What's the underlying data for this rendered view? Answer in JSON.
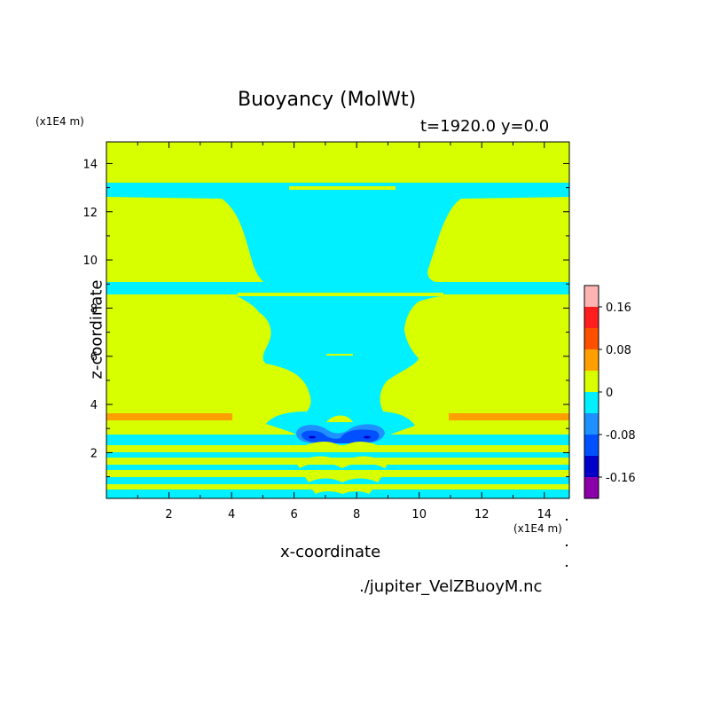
{
  "chart_data": {
    "type": "heatmap",
    "title": "Buoyancy (MolWt)",
    "subtitle": "t=1920.0 y=0.0",
    "xlabel": "x-coordinate",
    "ylabel": "z-coordinate",
    "x_unit": "(x1E4 m)",
    "y_unit": "(x1E4 m)",
    "xlim": [
      0,
      14.8
    ],
    "ylim": [
      0.1,
      14.9
    ],
    "x_ticks": [
      "2",
      "4",
      "6",
      "8",
      "10",
      "12",
      "14"
    ],
    "y_ticks": [
      "2",
      "4",
      "6",
      "8",
      "10",
      "12",
      "14"
    ],
    "colorbar": {
      "levels": [
        -0.2,
        -0.16,
        -0.12,
        -0.08,
        -0.04,
        0,
        0.04,
        0.08,
        0.12,
        0.16,
        0.2
      ],
      "tick_labels": [
        "0.16",
        "0.08",
        "0",
        "-0.08",
        "-0.16"
      ],
      "colors": [
        "#8b00a8",
        "#0000c8",
        "#0050ff",
        "#1e90ff",
        "#00f0ff",
        "#d7ff00",
        "#ffa000",
        "#ff5000",
        "#ff1e1e",
        "#ffb4b4"
      ]
    },
    "colors": {
      "background": "#d7ff00",
      "negative_small": "#00f0ff",
      "negative_medium": "#1e90ff",
      "negative_large": "#0050ff",
      "negative_max": "#0000c8",
      "positive_small": "#ffa000"
    }
  },
  "footer": {
    "source": "./jupiter_VelZBuoyM.nc"
  }
}
